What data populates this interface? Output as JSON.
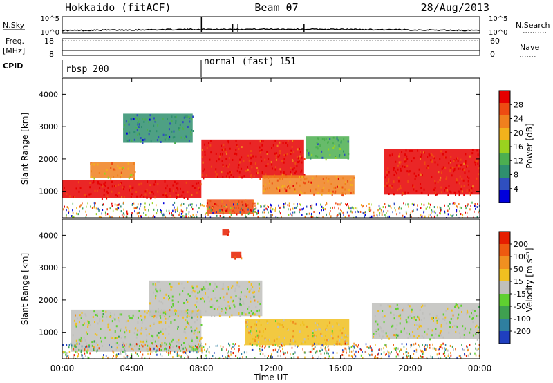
{
  "header": {
    "station": "Hokkaido (fitACF)",
    "beam": "Beam 07",
    "date": "28/Aug/2013"
  },
  "strip_panels": {
    "nsky": {
      "left_label": "N.Sky",
      "right_label": "N.Search",
      "left_ticks": [
        "10^5",
        "10^0"
      ],
      "right_ticks": [
        "10^5",
        "10^0"
      ],
      "approx_level": 1.2,
      "spikes_hours": [
        8.0,
        9.8,
        10.1,
        13.9
      ]
    },
    "freq": {
      "left_label_top": "Freq.",
      "left_label_unit": "[MHz]",
      "right_label": "Nave",
      "left_ticks": [
        "18",
        "8"
      ],
      "right_ticks": [
        "60",
        "0"
      ],
      "freq_value": 11,
      "nave_value": 52
    },
    "cpid": {
      "label": "CPID",
      "segments": [
        {
          "start_hour": 0.0,
          "end_hour": 8.0,
          "text": "rbsp 200"
        },
        {
          "start_hour": 8.0,
          "end_hour": 24.0,
          "text": "normal (fast) 151"
        }
      ]
    }
  },
  "x_axis": {
    "label": "Time UT",
    "ticks": [
      "00:00",
      "04:00",
      "08:00",
      "12:00",
      "16:00",
      "20:00",
      "00:00"
    ],
    "range_hours": [
      0,
      24
    ]
  },
  "panels": [
    {
      "id": "power",
      "ylabel": "Slant Range [km]",
      "yticks": [
        "1000",
        "2000",
        "3000",
        "4000"
      ],
      "colorbar_label": "Power [dB]",
      "colorbar_ticks": [
        "4",
        "8",
        "12",
        "16",
        "20",
        "24",
        "28"
      ],
      "colors": [
        "#0000dd",
        "#2f4fbf",
        "#2f8f6f",
        "#4caf50",
        "#9ad21f",
        "#f2b21c",
        "#f0801e",
        "#ee4b12",
        "#e60000"
      ]
    },
    {
      "id": "velocity",
      "ylabel": "Slant Range [km]",
      "yticks": [
        "1000",
        "2000",
        "3000",
        "4000"
      ],
      "colorbar_label": "Velocity [m s⁻¹]",
      "colorbar_ticks": [
        "200",
        "100",
        "50",
        "15",
        "-15",
        "-50",
        "-100",
        "-200"
      ],
      "colors": [
        "#1f3fbf",
        "#2f7f9f",
        "#3fa050",
        "#5fd030",
        "#c0c0bc",
        "#f0c020",
        "#f09020",
        "#ee5a10",
        "#e61e00"
      ]
    }
  ],
  "chart_data": [
    {
      "type": "heatmap",
      "name": "power",
      "x_unit": "hours UT",
      "y_unit": "km",
      "xlim": [
        0,
        24
      ],
      "ylim": [
        180,
        4500
      ],
      "zlim": [
        0,
        30
      ],
      "regions": [
        {
          "t0": 0.0,
          "t1": 8.0,
          "r0": 800,
          "r1": 1350,
          "value": 28
        },
        {
          "t0": 1.6,
          "t1": 4.2,
          "r0": 1400,
          "r1": 1900,
          "value": 20
        },
        {
          "t0": 3.5,
          "t1": 7.5,
          "r0": 2500,
          "r1": 3400,
          "value": 8
        },
        {
          "t0": 8.0,
          "t1": 13.9,
          "r0": 1400,
          "r1": 2600,
          "value": 27
        },
        {
          "t0": 8.3,
          "t1": 11.0,
          "r0": 300,
          "r1": 750,
          "value": 26
        },
        {
          "t0": 11.5,
          "t1": 16.8,
          "r0": 900,
          "r1": 1500,
          "value": 22
        },
        {
          "t0": 14.0,
          "t1": 16.5,
          "r0": 2000,
          "r1": 2700,
          "value": 10
        },
        {
          "t0": 18.5,
          "t1": 24.0,
          "r0": 900,
          "r1": 2300,
          "value": 28
        }
      ]
    },
    {
      "type": "heatmap",
      "name": "velocity",
      "x_unit": "hours UT",
      "y_unit": "km",
      "xlim": [
        0,
        24
      ],
      "ylim": [
        180,
        4500
      ],
      "zlim": [
        -200,
        200
      ],
      "regions": [
        {
          "t0": 0.5,
          "t1": 8.0,
          "r0": 400,
          "r1": 1700,
          "value": 0
        },
        {
          "t0": 5.0,
          "t1": 11.5,
          "r0": 1500,
          "r1": 2600,
          "value": 0
        },
        {
          "t0": 10.5,
          "t1": 16.5,
          "r0": 600,
          "r1": 1400,
          "value": 40
        },
        {
          "t0": 17.8,
          "t1": 24.0,
          "r0": 800,
          "r1": 1900,
          "value": 0
        },
        {
          "t0": 9.7,
          "t1": 10.3,
          "r0": 3300,
          "r1": 3500,
          "value": 160
        },
        {
          "t0": 9.2,
          "t1": 9.6,
          "r0": 4000,
          "r1": 4200,
          "value": 200
        }
      ]
    }
  ]
}
